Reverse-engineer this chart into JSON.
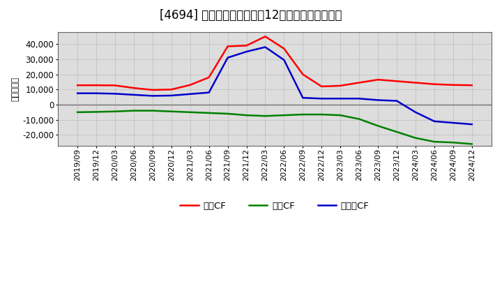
{
  "title": "[4694] キャッシュフローの12か月移動合計の推移",
  "ylabel": "（百万円）",
  "background_color": "#ffffff",
  "plot_background": "#e8e8e8",
  "grid_color": "#999999",
  "zero_line_color": "#666666",
  "x_labels": [
    "2019/09",
    "2019/12",
    "2020/03",
    "2020/06",
    "2020/09",
    "2020/12",
    "2021/03",
    "2021/06",
    "2021/09",
    "2021/12",
    "2022/03",
    "2022/06",
    "2022/09",
    "2022/12",
    "2023/03",
    "2023/06",
    "2023/09",
    "2023/12",
    "2024/03",
    "2024/06",
    "2024/09",
    "2024/12"
  ],
  "eigyo_cf": [
    12800,
    12800,
    12700,
    11000,
    9700,
    10000,
    13000,
    18000,
    38500,
    39000,
    45000,
    37000,
    20000,
    12000,
    12500,
    14500,
    16500,
    15500,
    14500,
    13500,
    13000,
    12800
  ],
  "toshi_cf": [
    -5000,
    -4800,
    -4500,
    -4000,
    -4000,
    -4500,
    -5000,
    -5500,
    -6000,
    -7000,
    -7500,
    -7000,
    -6500,
    -6500,
    -7000,
    -9500,
    -14000,
    -18000,
    -22000,
    -24500,
    -25000,
    -26000
  ],
  "free_cf": [
    7500,
    7500,
    7200,
    6500,
    5800,
    6000,
    7000,
    8000,
    31000,
    35000,
    38000,
    29500,
    4500,
    4000,
    4000,
    4000,
    3000,
    2500,
    -5000,
    -11000,
    -12000,
    -13000
  ],
  "eigyo_color": "#ff0000",
  "toshi_color": "#008000",
  "free_color": "#0000cc",
  "eigyo_label": "営業CF",
  "toshi_label": "投資CF",
  "free_label": "フリーCF",
  "ylim": [
    -27000,
    48000
  ],
  "yticks": [
    -20000,
    -10000,
    0,
    10000,
    20000,
    30000,
    40000
  ],
  "line_width": 1.8,
  "title_fontsize": 12,
  "axis_fontsize": 8.5,
  "legend_fontsize": 9.5
}
